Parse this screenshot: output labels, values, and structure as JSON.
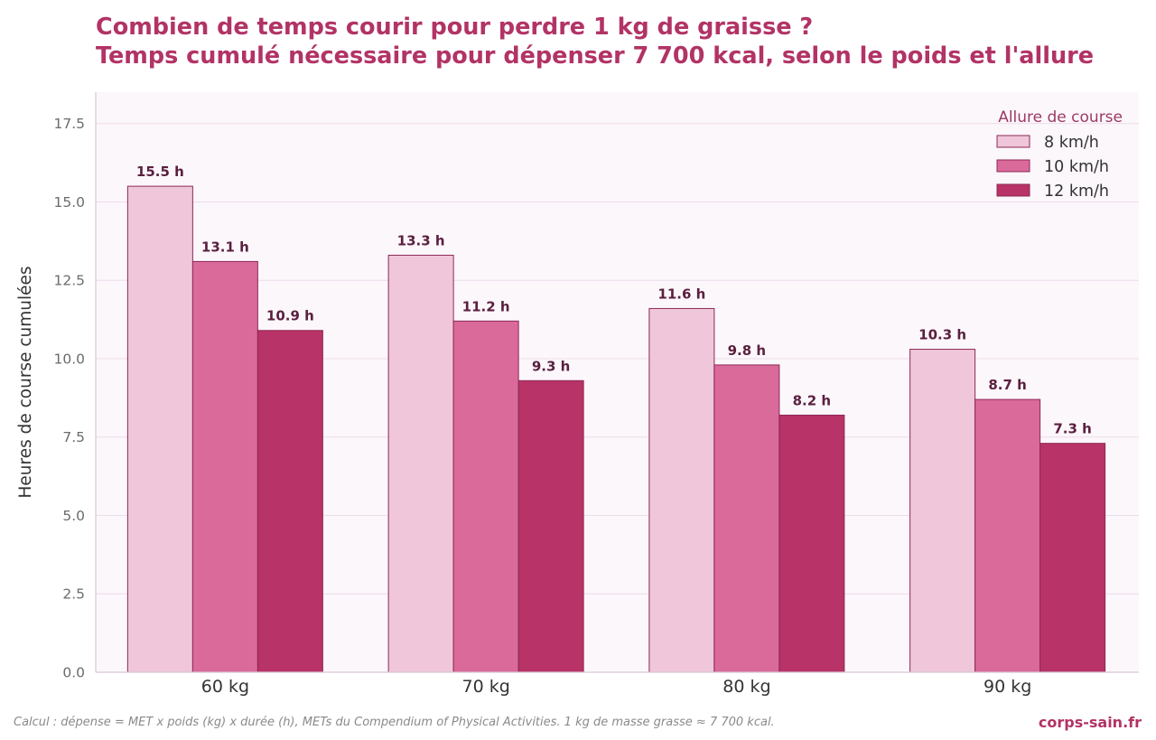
{
  "header": {
    "title_line1": "Combien de temps courir pour perdre 1 kg de graisse ?",
    "title_line2": "Temps cumulé nécessaire pour dépenser 7 700 kcal, selon le poids et l'allure"
  },
  "footer": {
    "note": "Calcul : dépense = MET x poids (kg) x durée (h), METs du Compendium of Physical Activities. 1 kg de masse grasse ≈ 7 700 kcal.",
    "brand": "corps-sain.fr"
  },
  "colors": {
    "title": "#b23366",
    "plot_background": "#fcf7fb",
    "grid": "#ecdcea",
    "bar_edge": "#8c2a57",
    "value_label": "#5a1f3f",
    "legend_title": "#9b3a66",
    "tick_text": "#6b6b6b"
  },
  "chart_data": {
    "type": "bar",
    "categories": [
      "60 kg",
      "70 kg",
      "80 kg",
      "90 kg"
    ],
    "ylabel": "Heures de course cumulées",
    "xlabel": "",
    "ylim": [
      0,
      18.5
    ],
    "yticks": [
      "0.0",
      "2.5",
      "5.0",
      "7.5",
      "10.0",
      "12.5",
      "15.0",
      "17.5"
    ],
    "grid": "horizontal",
    "legend_title": "Allure de course",
    "legend_position": "top-right",
    "series": [
      {
        "name": "8 km/h",
        "color": "#f0c6da",
        "values": [
          15.5,
          13.3,
          11.6,
          10.3
        ],
        "labels": [
          "15.5 h",
          "13.3 h",
          "11.6 h",
          "10.3 h"
        ]
      },
      {
        "name": "10 km/h",
        "color": "#da6a9a",
        "values": [
          13.1,
          11.2,
          9.8,
          8.7
        ],
        "labels": [
          "13.1 h",
          "11.2 h",
          "9.8 h",
          "8.7 h"
        ]
      },
      {
        "name": "12 km/h",
        "color": "#b83367",
        "values": [
          10.9,
          9.3,
          8.2,
          7.3
        ],
        "labels": [
          "10.9 h",
          "9.3 h",
          "8.2 h",
          "7.3 h"
        ]
      }
    ]
  }
}
